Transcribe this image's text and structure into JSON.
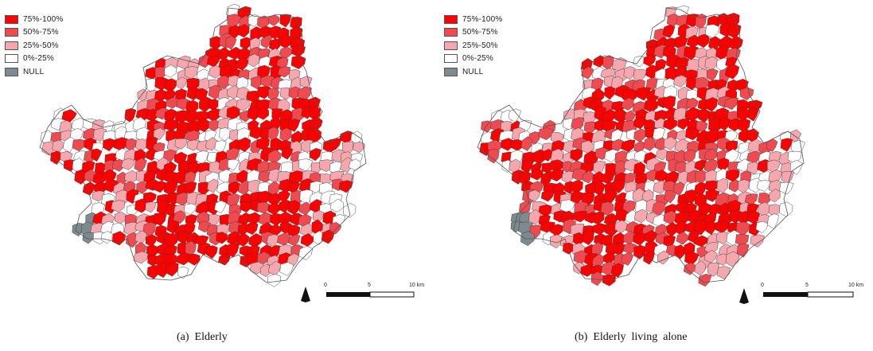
{
  "legend": {
    "items": [
      {
        "label": "75%-100%",
        "color": "#ff0000"
      },
      {
        "label": "50%-75%",
        "color": "#ee4a50"
      },
      {
        "label": "25%-50%",
        "color": "#f6a7ad"
      },
      {
        "label": "0%-25%",
        "color": "#ffffff"
      },
      {
        "label": "NULL",
        "color": "#7d8a8f"
      }
    ]
  },
  "scalebar": {
    "ticks": [
      "0",
      "5",
      "10 km"
    ]
  },
  "panels": [
    {
      "caption": "(a)  Elderly"
    },
    {
      "caption": "(b)  Elderly  living  alone"
    }
  ],
  "chart_data": [
    {
      "type": "choropleth",
      "title": "(a)  Elderly",
      "classes": [
        "75%-100%",
        "50%-75%",
        "25%-50%",
        "0%-25%",
        "NULL"
      ]
    },
    {
      "type": "choropleth",
      "title": "(b)  Elderly  living  alone",
      "classes": [
        "75%-100%",
        "50%-75%",
        "25%-50%",
        "0%-25%",
        "NULL"
      ]
    }
  ]
}
